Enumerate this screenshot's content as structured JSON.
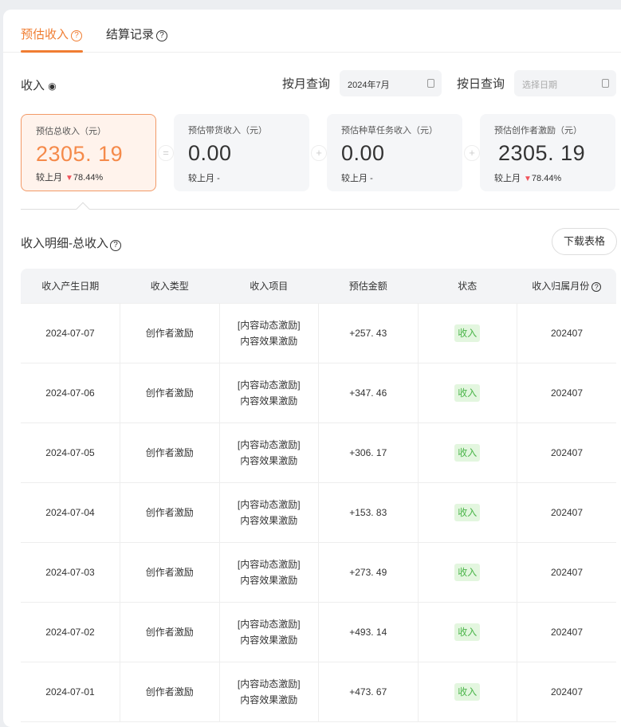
{
  "tabs": [
    {
      "label": "预估收入",
      "active": true
    },
    {
      "label": "结算记录",
      "active": false
    }
  ],
  "income_label": "收入",
  "filters": {
    "month_label": "按月查询",
    "month_value": "2024年7月",
    "day_label": "按日查询",
    "day_placeholder": "选择日期"
  },
  "stats": [
    {
      "title": "预估总收入（元）",
      "value": "2305. 19",
      "compare_label": "较上月",
      "compare_value": "78.44%",
      "trend": "down"
    },
    {
      "title": "预估带货收入（元）",
      "value": "0.00",
      "compare_label": "较上月",
      "compare_value": "-"
    },
    {
      "title": "预估种草任务收入（元）",
      "value": "0.00",
      "compare_label": "较上月",
      "compare_value": "-"
    },
    {
      "title": "预估创作者激励（元）",
      "value": "2305. 19",
      "compare_label": "较上月",
      "compare_value": "78.44%",
      "trend": "down"
    }
  ],
  "operators": [
    "=",
    "+",
    "+"
  ],
  "detail": {
    "title": "收入明细-总收入",
    "download": "下载表格"
  },
  "table": {
    "headers": [
      "收入产生日期",
      "收入类型",
      "收入项目",
      "预估金额",
      "状态",
      "收入归属月份"
    ],
    "rows": [
      [
        "2024-07-07",
        "创作者激励",
        "[内容动态激励]",
        "内容效果激励",
        "+257. 43",
        "收入",
        "202407"
      ],
      [
        "2024-07-06",
        "创作者激励",
        "[内容动态激励]",
        "内容效果激励",
        "+347. 46",
        "收入",
        "202407"
      ],
      [
        "2024-07-05",
        "创作者激励",
        "[内容动态激励]",
        "内容效果激励",
        "+306. 17",
        "收入",
        "202407"
      ],
      [
        "2024-07-04",
        "创作者激励",
        "[内容动态激励]",
        "内容效果激励",
        "+153. 83",
        "收入",
        "202407"
      ],
      [
        "2024-07-03",
        "创作者激励",
        "[内容动态激励]",
        "内容效果激励",
        "+273. 49",
        "收入",
        "202407"
      ],
      [
        "2024-07-02",
        "创作者激励",
        "[内容动态激励]",
        "内容效果激励",
        "+493. 14",
        "收入",
        "202407"
      ],
      [
        "2024-07-01",
        "创作者激励",
        "[内容动态激励]",
        "内容效果激励",
        "+473. 67",
        "收入",
        "202407"
      ]
    ]
  },
  "colors": {
    "accent": "#f07d32",
    "status_bg": "#e3f6df",
    "status_text": "#4bb54a",
    "down": "#f0525a"
  }
}
